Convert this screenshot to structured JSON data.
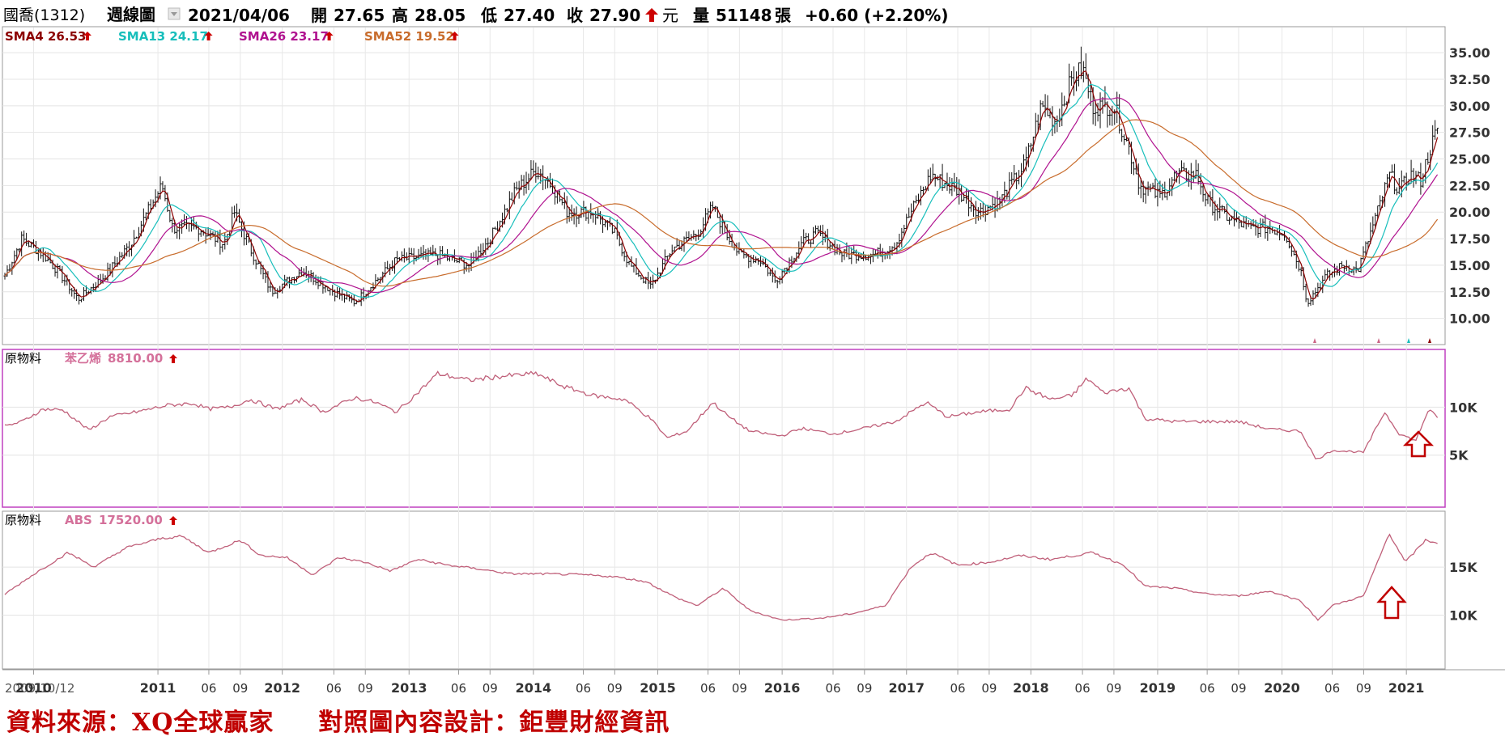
{
  "header": {
    "stock": "國喬(1312)",
    "period": "週線圖",
    "date": "2021/04/06",
    "open_label": "開",
    "open": "27.65",
    "high_label": "高",
    "high": "28.05",
    "low_label": "低",
    "low": "27.40",
    "close_label": "收",
    "close": "27.90",
    "unit": "元",
    "volume_label": "量",
    "volume": "51148",
    "volume_unit": "張",
    "change": "+0.60 (+2.20%)"
  },
  "credits": {
    "source": "資料來源：XQ全球贏家",
    "design": "對照圖內容設計：鉅豐財經資訊"
  },
  "colors": {
    "up_arrow": "#cc0000",
    "candle": "#000000",
    "sma4": "#8b0000",
    "sma13": "#17bebb",
    "sma26": "#b0128f",
    "sma52": "#c86c2c",
    "commodity_line": "#c0607a",
    "panel2_border": "#c040c0",
    "annotation_arrow": "#c00000"
  },
  "chart_data": [
    {
      "type": "candlestick",
      "panel": "price",
      "legend": [
        {
          "name": "SMA4",
          "value": "26.53",
          "color": "#8b0000"
        },
        {
          "name": "SMA13",
          "value": "24.17",
          "color": "#17bebb"
        },
        {
          "name": "SMA26",
          "value": "23.17",
          "color": "#b0128f"
        },
        {
          "name": "SMA52",
          "value": "19.52",
          "color": "#c86c2c"
        }
      ],
      "y_ticks": [
        "35.00",
        "32.50",
        "30.00",
        "27.50",
        "25.00",
        "22.50",
        "20.00",
        "17.50",
        "15.00",
        "12.50",
        "10.00"
      ],
      "ylim": [
        8.6,
        36.0
      ],
      "x_start": "2009/10/12",
      "x_end": "2021/04/06",
      "price_path": [
        [
          "2009-10-12",
          14.0
        ],
        [
          "2009-12-01",
          17.5
        ],
        [
          "2010-02-01",
          16.0
        ],
        [
          "2010-03-15",
          14.5
        ],
        [
          "2010-05-15",
          11.8
        ],
        [
          "2010-08-01",
          14.0
        ],
        [
          "2010-10-15",
          17.0
        ],
        [
          "2010-12-20",
          21.0
        ],
        [
          "2011-01-15",
          22.5
        ],
        [
          "2011-02-15",
          18.5
        ],
        [
          "2011-05-01",
          18.5
        ],
        [
          "2011-07-15",
          17.0
        ],
        [
          "2011-08-15",
          20.0
        ],
        [
          "2011-10-01",
          16.5
        ],
        [
          "2011-12-01",
          12.5
        ],
        [
          "2012-03-01",
          14.5
        ],
        [
          "2012-06-01",
          12.5
        ],
        [
          "2012-08-01",
          11.5
        ],
        [
          "2012-10-01",
          13.5
        ],
        [
          "2012-12-01",
          15.5
        ],
        [
          "2013-04-01",
          16.0
        ],
        [
          "2013-07-01",
          15.0
        ],
        [
          "2013-09-01",
          17.5
        ],
        [
          "2013-11-15",
          22.0
        ],
        [
          "2014-01-15",
          24.0
        ],
        [
          "2014-03-01",
          22.5
        ],
        [
          "2014-04-15",
          20.0
        ],
        [
          "2014-07-01",
          20.0
        ],
        [
          "2014-09-01",
          18.0
        ],
        [
          "2014-10-15",
          15.0
        ],
        [
          "2014-12-15",
          13.0
        ],
        [
          "2015-02-15",
          16.5
        ],
        [
          "2015-05-01",
          18.0
        ],
        [
          "2015-06-15",
          20.5
        ],
        [
          "2015-07-15",
          18.5
        ],
        [
          "2015-09-01",
          16.0
        ],
        [
          "2015-11-01",
          15.5
        ],
        [
          "2015-12-15",
          13.5
        ],
        [
          "2016-03-01",
          17.0
        ],
        [
          "2016-04-15",
          18.0
        ],
        [
          "2016-07-01",
          16.0
        ],
        [
          "2016-10-01",
          16.0
        ],
        [
          "2016-12-01",
          17.0
        ],
        [
          "2017-01-15",
          20.0
        ],
        [
          "2017-03-15",
          23.5
        ],
        [
          "2017-06-01",
          22.0
        ],
        [
          "2017-08-01",
          20.0
        ],
        [
          "2017-10-01",
          21.0
        ],
        [
          "2017-12-15",
          24.5
        ],
        [
          "2018-02-01",
          30.0
        ],
        [
          "2018-03-15",
          28.5
        ],
        [
          "2018-05-01",
          32.5
        ],
        [
          "2018-06-01",
          33.5
        ],
        [
          "2018-07-01",
          30.0
        ],
        [
          "2018-09-01",
          30.0
        ],
        [
          "2018-10-15",
          26.0
        ],
        [
          "2018-11-15",
          22.5
        ],
        [
          "2019-01-15",
          21.5
        ],
        [
          "2019-03-01",
          23.5
        ],
        [
          "2019-05-01",
          23.5
        ],
        [
          "2019-06-01",
          21.0
        ],
        [
          "2019-08-01",
          19.5
        ],
        [
          "2019-10-01",
          18.5
        ],
        [
          "2019-12-01",
          18.5
        ],
        [
          "2020-01-15",
          18.0
        ],
        [
          "2020-03-01",
          14.5
        ],
        [
          "2020-03-20",
          11.5
        ],
        [
          "2020-05-15",
          14.0
        ],
        [
          "2020-07-01",
          15.0
        ],
        [
          "2020-08-15",
          14.5
        ],
        [
          "2020-10-01",
          19.0
        ],
        [
          "2020-11-15",
          23.5
        ],
        [
          "2020-12-15",
          22.0
        ],
        [
          "2021-01-15",
          23.5
        ],
        [
          "2021-02-15",
          23.0
        ],
        [
          "2021-03-15",
          26.0
        ],
        [
          "2021-04-06",
          27.9
        ]
      ]
    },
    {
      "type": "line",
      "panel": "commodity-1",
      "label": "原物料",
      "series": [
        {
          "name": "苯乙烯",
          "last_value": "8810.00"
        }
      ],
      "y_ticks": [
        "10K",
        "5K"
      ],
      "ylim": [
        0,
        14500
      ],
      "points": [
        [
          "2009-10-12",
          8000
        ],
        [
          "2009-12-01",
          8500
        ],
        [
          "2010-02-01",
          9800
        ],
        [
          "2010-04-01",
          9700
        ],
        [
          "2010-06-15",
          7600
        ],
        [
          "2010-08-15",
          9000
        ],
        [
          "2010-11-01",
          9500
        ],
        [
          "2011-02-01",
          10200
        ],
        [
          "2011-04-15",
          10400
        ],
        [
          "2011-06-01",
          9800
        ],
        [
          "2011-08-01",
          10000
        ],
        [
          "2011-10-01",
          10800
        ],
        [
          "2011-12-15",
          9800
        ],
        [
          "2012-03-01",
          10800
        ],
        [
          "2012-05-01",
          9500
        ],
        [
          "2012-08-01",
          11000
        ],
        [
          "2012-10-01",
          10500
        ],
        [
          "2012-12-01",
          9500
        ],
        [
          "2013-02-01",
          11500
        ],
        [
          "2013-04-01",
          13500
        ],
        [
          "2013-07-01",
          12800
        ],
        [
          "2013-10-01",
          13200
        ],
        [
          "2014-01-15",
          13500
        ],
        [
          "2014-04-01",
          12200
        ],
        [
          "2014-07-01",
          11200
        ],
        [
          "2014-10-01",
          10800
        ],
        [
          "2014-12-15",
          8800
        ],
        [
          "2015-02-01",
          6800
        ],
        [
          "2015-04-01",
          7500
        ],
        [
          "2015-06-15",
          10500
        ],
        [
          "2015-08-01",
          9000
        ],
        [
          "2015-10-01",
          7500
        ],
        [
          "2016-01-01",
          7000
        ],
        [
          "2016-03-01",
          7800
        ],
        [
          "2016-06-01",
          7200
        ],
        [
          "2016-09-01",
          7800
        ],
        [
          "2016-12-01",
          8500
        ],
        [
          "2017-03-01",
          10500
        ],
        [
          "2017-05-01",
          9000
        ],
        [
          "2017-08-01",
          9500
        ],
        [
          "2017-11-01",
          9800
        ],
        [
          "2017-12-15",
          12000
        ],
        [
          "2018-03-01",
          10800
        ],
        [
          "2018-05-01",
          11200
        ],
        [
          "2018-06-15",
          13000
        ],
        [
          "2018-08-01",
          11500
        ],
        [
          "2018-10-15",
          12000
        ],
        [
          "2018-12-01",
          8800
        ],
        [
          "2019-03-01",
          8500
        ],
        [
          "2019-06-01",
          8500
        ],
        [
          "2019-09-01",
          8500
        ],
        [
          "2019-12-01",
          7700
        ],
        [
          "2020-03-01",
          7500
        ],
        [
          "2020-04-15",
          4500
        ],
        [
          "2020-06-01",
          5500
        ],
        [
          "2020-09-01",
          5300
        ],
        [
          "2020-11-01",
          9500
        ],
        [
          "2020-12-15",
          7200
        ],
        [
          "2021-02-01",
          6500
        ],
        [
          "2021-03-10",
          9800
        ],
        [
          "2021-04-06",
          8810
        ]
      ]
    },
    {
      "type": "line",
      "panel": "commodity-2",
      "label": "原物料",
      "series": [
        {
          "name": "ABS",
          "last_value": "17520.00"
        }
      ],
      "y_ticks": [
        "15K",
        "10K"
      ],
      "ylim": [
        5000,
        19300
      ],
      "points": [
        [
          "2009-10-12",
          12200
        ],
        [
          "2010-01-15",
          14500
        ],
        [
          "2010-04-15",
          16500
        ],
        [
          "2010-07-01",
          15000
        ],
        [
          "2010-10-01",
          17000
        ],
        [
          "2011-01-15",
          18000
        ],
        [
          "2011-03-15",
          18200
        ],
        [
          "2011-06-01",
          16500
        ],
        [
          "2011-09-01",
          17800
        ],
        [
          "2011-11-01",
          16200
        ],
        [
          "2012-01-15",
          16000
        ],
        [
          "2012-04-01",
          14200
        ],
        [
          "2012-06-15",
          16000
        ],
        [
          "2012-09-01",
          15500
        ],
        [
          "2012-11-15",
          14600
        ],
        [
          "2013-02-01",
          15800
        ],
        [
          "2013-05-01",
          15200
        ],
        [
          "2013-08-01",
          14800
        ],
        [
          "2013-11-01",
          14300
        ],
        [
          "2014-02-01",
          14300
        ],
        [
          "2014-06-01",
          14200
        ],
        [
          "2014-09-01",
          14000
        ],
        [
          "2014-12-01",
          13500
        ],
        [
          "2015-03-01",
          11800
        ],
        [
          "2015-05-01",
          11000
        ],
        [
          "2015-07-15",
          12800
        ],
        [
          "2015-10-01",
          10500
        ],
        [
          "2016-01-01",
          9500
        ],
        [
          "2016-05-01",
          9700
        ],
        [
          "2016-08-01",
          10200
        ],
        [
          "2016-11-01",
          11000
        ],
        [
          "2017-01-15",
          15000
        ],
        [
          "2017-03-15",
          16500
        ],
        [
          "2017-06-01",
          15200
        ],
        [
          "2017-09-01",
          15500
        ],
        [
          "2017-12-01",
          16200
        ],
        [
          "2018-03-01",
          15800
        ],
        [
          "2018-07-01",
          16500
        ],
        [
          "2018-10-01",
          15200
        ],
        [
          "2018-12-01",
          13000
        ],
        [
          "2019-03-01",
          12800
        ],
        [
          "2019-06-01",
          12200
        ],
        [
          "2019-09-01",
          12000
        ],
        [
          "2019-12-01",
          12500
        ],
        [
          "2020-03-01",
          11500
        ],
        [
          "2020-04-20",
          9500
        ],
        [
          "2020-06-01",
          11000
        ],
        [
          "2020-09-01",
          12000
        ],
        [
          "2020-11-15",
          18500
        ],
        [
          "2021-01-01",
          15500
        ],
        [
          "2021-03-01",
          17800
        ],
        [
          "2021-04-06",
          17520
        ]
      ]
    }
  ],
  "x_axis": {
    "start_label": "2009/10/12",
    "ticks": [
      {
        "d": "2010-01-04",
        "l": "2010",
        "y": true
      },
      {
        "d": "2011-01-03",
        "l": "2011",
        "y": true
      },
      {
        "d": "2011-06-01",
        "l": "06"
      },
      {
        "d": "2011-09-01",
        "l": "09"
      },
      {
        "d": "2012-01-02",
        "l": "2012",
        "y": true
      },
      {
        "d": "2012-06-01",
        "l": "06"
      },
      {
        "d": "2012-09-01",
        "l": "09"
      },
      {
        "d": "2013-01-07",
        "l": "2013",
        "y": true
      },
      {
        "d": "2013-06-01",
        "l": "06"
      },
      {
        "d": "2013-09-01",
        "l": "09"
      },
      {
        "d": "2014-01-06",
        "l": "2014",
        "y": true
      },
      {
        "d": "2014-06-01",
        "l": "06"
      },
      {
        "d": "2014-09-01",
        "l": "09"
      },
      {
        "d": "2015-01-05",
        "l": "2015",
        "y": true
      },
      {
        "d": "2015-06-01",
        "l": "06"
      },
      {
        "d": "2015-09-01",
        "l": "09"
      },
      {
        "d": "2016-01-04",
        "l": "2016",
        "y": true
      },
      {
        "d": "2016-06-01",
        "l": "06"
      },
      {
        "d": "2016-09-01",
        "l": "09"
      },
      {
        "d": "2017-01-02",
        "l": "2017",
        "y": true
      },
      {
        "d": "2017-06-01",
        "l": "06"
      },
      {
        "d": "2017-09-01",
        "l": "09"
      },
      {
        "d": "2018-01-01",
        "l": "2018",
        "y": true
      },
      {
        "d": "2018-06-01",
        "l": "06"
      },
      {
        "d": "2018-09-01",
        "l": "09"
      },
      {
        "d": "2019-01-07",
        "l": "2019",
        "y": true
      },
      {
        "d": "2019-06-01",
        "l": "06"
      },
      {
        "d": "2019-09-01",
        "l": "09"
      },
      {
        "d": "2020-01-06",
        "l": "2020",
        "y": true
      },
      {
        "d": "2020-06-01",
        "l": "06"
      },
      {
        "d": "2020-09-01",
        "l": "09"
      },
      {
        "d": "2021-01-04",
        "l": "2021",
        "y": true
      }
    ]
  }
}
